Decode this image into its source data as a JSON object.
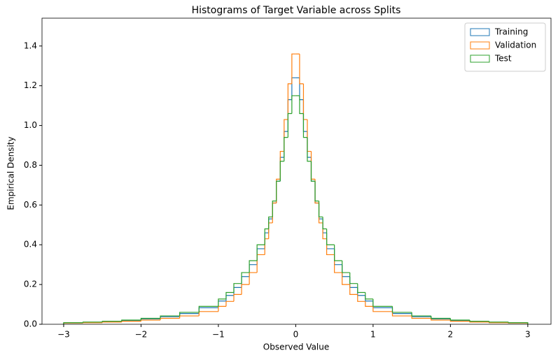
{
  "chart_data": {
    "type": "histogram",
    "title": "Histograms of Target Variable across Splits",
    "xlabel": "Observed Value",
    "ylabel": "Empirical Density",
    "bins": [
      -3,
      -2.75,
      -2.5,
      -2.25,
      -2,
      -1.75,
      -1.5,
      -1.25,
      -1,
      -0.9,
      -0.8,
      -0.7,
      -0.6,
      -0.5,
      -0.4,
      -0.35,
      -0.3,
      -0.25,
      -0.2,
      -0.15,
      -0.1,
      -0.05,
      0,
      0.05,
      0.1,
      0.15,
      0.2,
      0.25,
      0.3,
      0.35,
      0.4,
      0.5,
      0.6,
      0.7,
      0.8,
      0.9,
      1,
      1.25,
      1.5,
      1.75,
      2,
      2.25,
      2.5,
      2.75,
      3
    ],
    "series": [
      {
        "name": "Training",
        "color": "#1f77b4",
        "values": [
          0.007,
          0.01,
          0.014,
          0.019,
          0.027,
          0.038,
          0.054,
          0.083,
          0.117,
          0.145,
          0.185,
          0.24,
          0.3,
          0.38,
          0.46,
          0.53,
          0.61,
          0.72,
          0.84,
          0.97,
          1.13,
          1.24,
          1.24,
          1.13,
          0.97,
          0.84,
          0.72,
          0.61,
          0.53,
          0.46,
          0.38,
          0.3,
          0.24,
          0.185,
          0.145,
          0.117,
          0.083,
          0.054,
          0.038,
          0.027,
          0.019,
          0.014,
          0.01,
          0.007
        ]
      },
      {
        "name": "Validation",
        "color": "#ff7f0e",
        "values": [
          0.006,
          0.008,
          0.011,
          0.015,
          0.021,
          0.03,
          0.042,
          0.064,
          0.09,
          0.115,
          0.15,
          0.2,
          0.26,
          0.35,
          0.43,
          0.51,
          0.61,
          0.73,
          0.87,
          1.03,
          1.21,
          1.36,
          1.36,
          1.21,
          1.03,
          0.87,
          0.73,
          0.61,
          0.51,
          0.43,
          0.35,
          0.26,
          0.2,
          0.15,
          0.115,
          0.09,
          0.064,
          0.042,
          0.03,
          0.021,
          0.015,
          0.011,
          0.008,
          0.006
        ]
      },
      {
        "name": "Test",
        "color": "#2ca02c",
        "values": [
          0.008,
          0.011,
          0.015,
          0.021,
          0.03,
          0.042,
          0.06,
          0.09,
          0.127,
          0.16,
          0.205,
          0.26,
          0.32,
          0.4,
          0.48,
          0.54,
          0.62,
          0.72,
          0.82,
          0.94,
          1.06,
          1.15,
          1.15,
          1.06,
          0.94,
          0.82,
          0.72,
          0.62,
          0.54,
          0.48,
          0.4,
          0.32,
          0.26,
          0.205,
          0.16,
          0.127,
          0.09,
          0.06,
          0.042,
          0.03,
          0.021,
          0.015,
          0.011,
          0.008
        ]
      }
    ],
    "xlim": [
      -3.28,
      3.3
    ],
    "ylim": [
      0,
      1.54
    ],
    "xticks": [
      {
        "value": -3,
        "label": "−3"
      },
      {
        "value": -2,
        "label": "−2"
      },
      {
        "value": -1,
        "label": "−1"
      },
      0,
      1,
      2,
      3
    ],
    "yticks": [
      {
        "value": 0,
        "label": "0.0"
      },
      0.2,
      0.4,
      0.6,
      0.8,
      {
        "value": 1,
        "label": "1.0"
      },
      1.2,
      1.4
    ],
    "legend": "upper right"
  }
}
